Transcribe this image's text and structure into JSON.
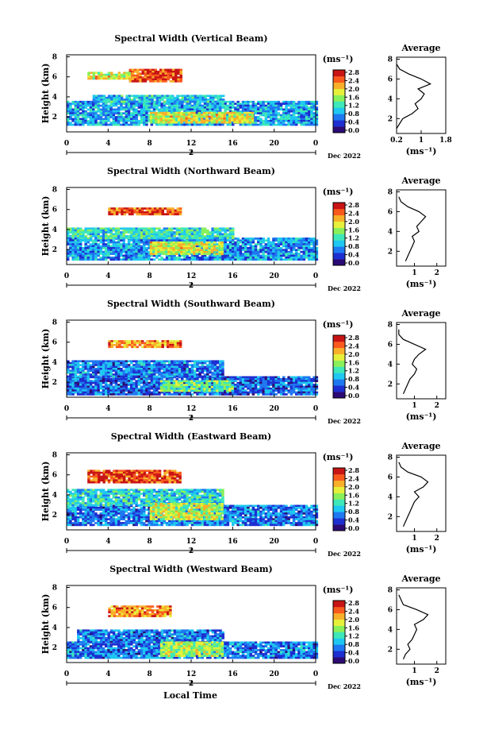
{
  "figure": {
    "xlabel": "Local Time",
    "date_label": "Dec 2022",
    "sub_tick_label": "2",
    "ylabel": "Height (km)",
    "unit_label": "(ms⁻¹)",
    "avg_title": "Average",
    "colorbar_ticks": [
      "0.0",
      "0.4",
      "0.8",
      "1.2",
      "1.6",
      "2.0",
      "2.4",
      "2.8"
    ],
    "colormap": [
      "#2c0a74",
      "#1d2fd0",
      "#1e78f0",
      "#1ec8f0",
      "#3ee8b8",
      "#8af05a",
      "#e6f03a",
      "#f8b02a",
      "#f85a1e",
      "#c81414"
    ]
  },
  "chart_data": [
    {
      "type": "heatmap",
      "title": "Spectral Width (Vertical Beam)",
      "x_ticks": [
        "0",
        "4",
        "8",
        "12",
        "16",
        "20",
        "0"
      ],
      "xlim": [
        0,
        24
      ],
      "y_ticks": [
        "2",
        "4",
        "6",
        "8"
      ],
      "ylim": [
        0.5,
        8.2
      ],
      "cbar_range": [
        0.0,
        2.8
      ],
      "bands": [
        {
          "h0": 1.2,
          "h1": 3.6,
          "t0": 0,
          "t1": 24,
          "v": 0.9
        },
        {
          "h0": 3.6,
          "h1": 4.2,
          "t0": 2.5,
          "t1": 15,
          "v": 1.0
        },
        {
          "h0": 1.5,
          "h1": 2.5,
          "t0": 8,
          "t1": 18,
          "v": 1.8
        },
        {
          "h0": 5.5,
          "h1": 6.8,
          "t0": 6,
          "t1": 11,
          "v": 2.5
        },
        {
          "h0": 5.8,
          "h1": 6.5,
          "t0": 2,
          "t1": 6,
          "v": 1.8
        }
      ],
      "profile": {
        "width": [
          0.2,
          0.3,
          0.4,
          0.7,
          0.9,
          0.8,
          1.0,
          1.1,
          0.9,
          1.3,
          1.0,
          0.6,
          0.3,
          0.2
        ],
        "heights": [
          1.0,
          1.5,
          2.0,
          2.5,
          3.0,
          3.5,
          4.0,
          4.5,
          5.0,
          5.5,
          6.0,
          6.5,
          7.0,
          7.5
        ],
        "x_ticks": [
          "0.2",
          "1",
          "1.8"
        ],
        "xlim": [
          0.2,
          1.8
        ],
        "y_ticks": [
          "2",
          "4",
          "6",
          "8"
        ],
        "ylim": [
          0.5,
          8.2
        ]
      }
    },
    {
      "type": "heatmap",
      "title": "Spectral Width (Northward Beam)",
      "x_ticks": [
        "0",
        "4",
        "8",
        "12",
        "16",
        "20",
        "0"
      ],
      "xlim": [
        0,
        24
      ],
      "y_ticks": [
        "2",
        "4",
        "6",
        "8"
      ],
      "ylim": [
        0.5,
        8.2
      ],
      "cbar_range": [
        0.0,
        2.8
      ],
      "bands": [
        {
          "h0": 1.0,
          "h1": 3.2,
          "t0": 0,
          "t1": 24,
          "v": 0.8
        },
        {
          "h0": 3.2,
          "h1": 4.2,
          "t0": 0,
          "t1": 16,
          "v": 1.2
        },
        {
          "h0": 1.5,
          "h1": 2.8,
          "t0": 8,
          "t1": 15,
          "v": 1.8
        },
        {
          "h0": 5.5,
          "h1": 6.2,
          "t0": 4,
          "t1": 11,
          "v": 2.4
        }
      ],
      "profile": {
        "width": [
          0.6,
          0.7,
          0.8,
          0.9,
          1.0,
          0.9,
          1.2,
          1.1,
          1.3,
          1.5,
          1.2,
          0.7,
          0.4,
          0.3
        ],
        "heights": [
          1.0,
          1.5,
          2.0,
          2.5,
          3.0,
          3.5,
          4.0,
          4.5,
          5.0,
          5.5,
          6.0,
          6.5,
          7.0,
          7.5
        ],
        "x_ticks": [
          "1",
          "2"
        ],
        "xlim": [
          0.2,
          2.4
        ],
        "y_ticks": [
          "2",
          "4",
          "6",
          "8"
        ],
        "ylim": [
          0.5,
          8.2
        ]
      }
    },
    {
      "type": "heatmap",
      "title": "Spectral Width (Southward Beam)",
      "x_ticks": [
        "0",
        "4",
        "8",
        "12",
        "16",
        "20",
        "0"
      ],
      "xlim": [
        0,
        24
      ],
      "y_ticks": [
        "2",
        "4",
        "6",
        "8"
      ],
      "ylim": [
        0.5,
        8.2
      ],
      "cbar_range": [
        0.0,
        2.8
      ],
      "bands": [
        {
          "h0": 0.8,
          "h1": 2.6,
          "t0": 0,
          "t1": 24,
          "v": 0.6
        },
        {
          "h0": 2.6,
          "h1": 4.2,
          "t0": 0,
          "t1": 15,
          "v": 0.7
        },
        {
          "h0": 1.2,
          "h1": 2.2,
          "t0": 9,
          "t1": 16,
          "v": 1.4
        },
        {
          "h0": 5.5,
          "h1": 6.2,
          "t0": 4,
          "t1": 11,
          "v": 2.2
        }
      ],
      "profile": {
        "width": [
          0.5,
          0.6,
          0.7,
          0.8,
          1.0,
          1.1,
          0.9,
          1.0,
          1.2,
          1.5,
          1.0,
          0.5,
          0.3,
          0.3
        ],
        "heights": [
          1.0,
          1.5,
          2.0,
          2.5,
          3.0,
          3.5,
          4.0,
          4.5,
          5.0,
          5.5,
          6.0,
          6.5,
          7.0,
          7.5
        ],
        "x_ticks": [
          "1",
          "2"
        ],
        "xlim": [
          0.2,
          2.4
        ],
        "y_ticks": [
          "2",
          "4",
          "6",
          "8"
        ],
        "ylim": [
          0.5,
          8.2
        ]
      }
    },
    {
      "type": "heatmap",
      "title": "Spectral Width (Eastward Beam)",
      "x_ticks": [
        "0",
        "4",
        "8",
        "12",
        "16",
        "20",
        "0"
      ],
      "xlim": [
        0,
        24
      ],
      "y_ticks": [
        "2",
        "4",
        "6",
        "8"
      ],
      "ylim": [
        0.5,
        8.2
      ],
      "cbar_range": [
        0.0,
        2.8
      ],
      "bands": [
        {
          "h0": 1.0,
          "h1": 3.0,
          "t0": 0,
          "t1": 24,
          "v": 0.7
        },
        {
          "h0": 3.0,
          "h1": 4.6,
          "t0": 0,
          "t1": 15,
          "v": 1.1
        },
        {
          "h0": 1.5,
          "h1": 3.2,
          "t0": 8,
          "t1": 15,
          "v": 1.7
        },
        {
          "h0": 5.2,
          "h1": 6.5,
          "t0": 2,
          "t1": 11,
          "v": 2.5
        }
      ],
      "profile": {
        "width": [
          0.5,
          0.6,
          0.7,
          0.8,
          0.9,
          1.0,
          1.2,
          1.0,
          1.4,
          1.6,
          1.3,
          0.7,
          0.4,
          0.3
        ],
        "heights": [
          1.0,
          1.5,
          2.0,
          2.5,
          3.0,
          3.5,
          4.0,
          4.5,
          5.0,
          5.5,
          6.0,
          6.5,
          7.0,
          7.5
        ],
        "x_ticks": [
          "1",
          "2"
        ],
        "xlim": [
          0.2,
          2.4
        ],
        "y_ticks": [
          "2",
          "4",
          "6",
          "8"
        ],
        "ylim": [
          0.5,
          8.2
        ]
      }
    },
    {
      "type": "heatmap",
      "title": "Spectral Width (Westward Beam)",
      "x_ticks": [
        "0",
        "4",
        "8",
        "12",
        "16",
        "20",
        "0"
      ],
      "xlim": [
        0,
        24
      ],
      "y_ticks": [
        "2",
        "4",
        "6",
        "8"
      ],
      "ylim": [
        0.5,
        8.2
      ],
      "cbar_range": [
        0.0,
        2.8
      ],
      "bands": [
        {
          "h0": 0.9,
          "h1": 2.6,
          "t0": 0,
          "t1": 24,
          "v": 0.7
        },
        {
          "h0": 2.6,
          "h1": 3.8,
          "t0": 1,
          "t1": 15,
          "v": 0.7
        },
        {
          "h0": 1.2,
          "h1": 2.6,
          "t0": 9,
          "t1": 15,
          "v": 1.6
        },
        {
          "h0": 5.2,
          "h1": 6.2,
          "t0": 4,
          "t1": 10,
          "v": 2.2
        }
      ],
      "profile": {
        "width": [
          0.5,
          0.6,
          0.8,
          0.7,
          0.9,
          1.0,
          1.1,
          1.0,
          1.4,
          1.6,
          1.1,
          0.5,
          0.4,
          0.3
        ],
        "heights": [
          1.0,
          1.5,
          2.0,
          2.5,
          3.0,
          3.5,
          4.0,
          4.5,
          5.0,
          5.5,
          6.0,
          6.5,
          7.0,
          7.5
        ],
        "x_ticks": [
          "1",
          "2"
        ],
        "xlim": [
          0.2,
          2.4
        ],
        "y_ticks": [
          "2",
          "4",
          "6",
          "8"
        ],
        "ylim": [
          0.5,
          8.2
        ]
      }
    }
  ]
}
